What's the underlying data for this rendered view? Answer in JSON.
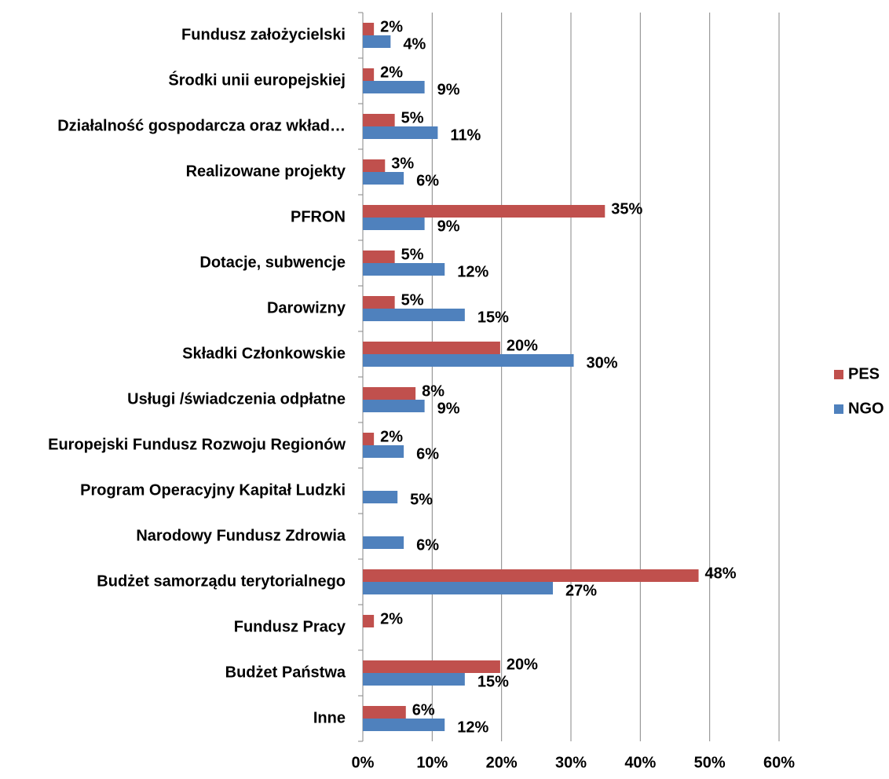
{
  "chart_data": {
    "type": "hbar",
    "categories": [
      "Fundusz założycielski",
      "Środki unii europejskiej",
      "Działalność gospodarcza oraz wkład…",
      "Realizowane projekty",
      "PFRON",
      "Dotacje, subwencje",
      "Darowizny",
      "Składki Członkowskie",
      "Usługi /świadczenia odpłatne",
      "Europejski Fundusz Rozwoju Regionów",
      "Program Operacyjny Kapitał Ludzki",
      "Narodowy Fundusz Zdrowia",
      "Budżet samorządu terytorialnego",
      "Fundusz Pracy",
      "Budżet Państwa",
      "Inne"
    ],
    "series": [
      {
        "name": "PES",
        "color": "#c0504d",
        "values": [
          1.6,
          1.6,
          4.6,
          3.2,
          34.9,
          4.6,
          4.6,
          19.8,
          7.6,
          1.6,
          null,
          null,
          48.4,
          1.6,
          19.8,
          6.2
        ],
        "value_labels": [
          "2%",
          "2%",
          "5%",
          "3%",
          "35%",
          "5%",
          "5%",
          "20%",
          "8%",
          "2%",
          null,
          null,
          "48%",
          "2%",
          "20%",
          "6%"
        ]
      },
      {
        "name": "NGO",
        "color": "#4f81bd",
        "values": [
          4.0,
          8.9,
          10.8,
          5.9,
          8.9,
          11.8,
          14.7,
          30.4,
          8.9,
          5.9,
          5.0,
          5.9,
          27.4,
          null,
          14.7,
          11.8
        ],
        "value_labels": [
          "4%",
          "9%",
          "11%",
          "6%",
          "9%",
          "12%",
          "15%",
          "30%",
          "9%",
          "6%",
          "5%",
          "6%",
          "27%",
          null,
          "15%",
          "12%"
        ]
      }
    ],
    "xlim": [
      0,
      60
    ],
    "xticks": [
      {
        "value": 0,
        "label": "0%"
      },
      {
        "value": 10,
        "label": "10%"
      },
      {
        "value": 20,
        "label": "20%"
      },
      {
        "value": 30,
        "label": "30%"
      },
      {
        "value": 40,
        "label": "40%"
      },
      {
        "value": 50,
        "label": "50%"
      },
      {
        "value": 60,
        "label": "60%"
      }
    ],
    "grid": true,
    "legend": "right"
  }
}
